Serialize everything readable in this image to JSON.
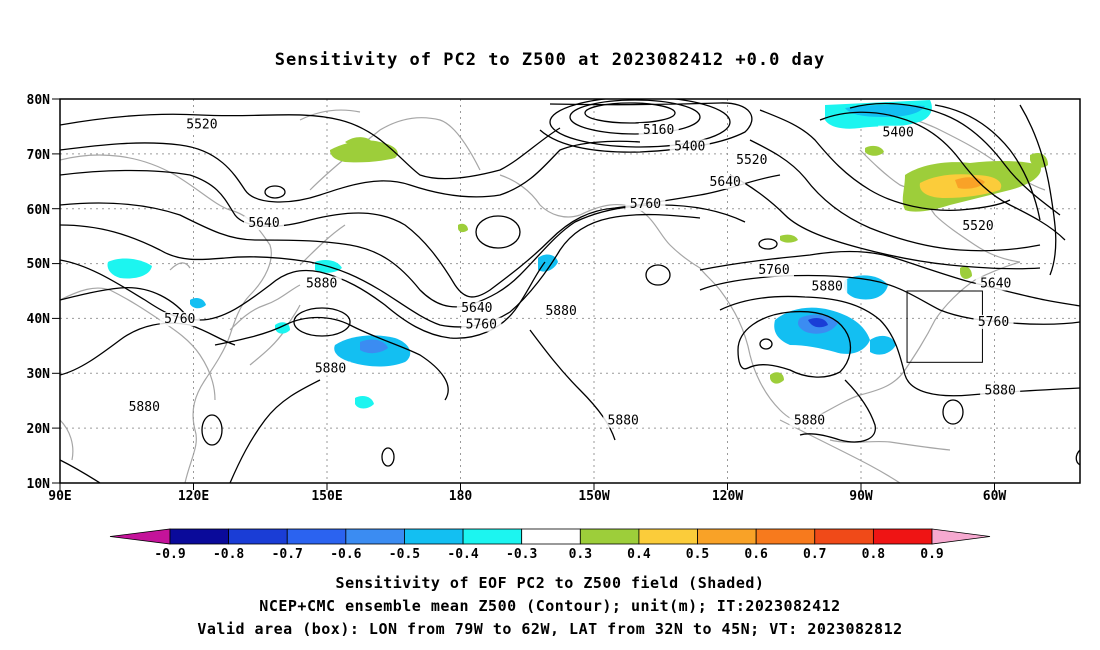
{
  "title": "Sensitivity of PC2 to Z500 at 2023082412 +0.0 day",
  "map": {
    "lat_labels": [
      "80N",
      "70N",
      "60N",
      "50N",
      "40N",
      "30N",
      "20N",
      "10N"
    ],
    "lon_labels": [
      "90E",
      "120E",
      "150E",
      "180",
      "150W",
      "120W",
      "90W",
      "60W"
    ],
    "contour_labels": [
      {
        "text": "5520",
        "lon": 122,
        "lat": 75
      },
      {
        "text": "5160",
        "lon": -135,
        "lat": 74
      },
      {
        "text": "5400",
        "lon": -128,
        "lat": 71
      },
      {
        "text": "5520",
        "lon": -114,
        "lat": 68.5
      },
      {
        "text": "5640",
        "lon": -120,
        "lat": 64.5
      },
      {
        "text": "5400",
        "lon": -81,
        "lat": 73.5
      },
      {
        "text": "5640",
        "lon": 136,
        "lat": 57
      },
      {
        "text": "5760",
        "lon": -138,
        "lat": 60.5
      },
      {
        "text": "5520",
        "lon": -63,
        "lat": 56.5
      },
      {
        "text": "5880",
        "lon": 149,
        "lat": 46
      },
      {
        "text": "5640",
        "lon": -176,
        "lat": 41.5
      },
      {
        "text": "5760",
        "lon": -175,
        "lat": 38.5
      },
      {
        "text": "5880",
        "lon": -157,
        "lat": 41
      },
      {
        "text": "5760",
        "lon": -109,
        "lat": 48.5
      },
      {
        "text": "5880",
        "lon": -97,
        "lat": 45.5
      },
      {
        "text": "5640",
        "lon": -59,
        "lat": 46
      },
      {
        "text": "5760",
        "lon": -59.5,
        "lat": 39
      },
      {
        "text": "5760",
        "lon": 117,
        "lat": 39.5
      },
      {
        "text": "5880",
        "lon": 151,
        "lat": 30.5
      },
      {
        "text": "5880",
        "lon": 109,
        "lat": 23.5
      },
      {
        "text": "5880",
        "lon": -143,
        "lat": 21
      },
      {
        "text": "5880",
        "lon": -101,
        "lat": 21
      },
      {
        "text": "5880",
        "lon": -58,
        "lat": 26.5
      }
    ],
    "valid_box": {
      "lon_min": -79,
      "lon_max": -62,
      "lat_min": 32,
      "lat_max": 45
    }
  },
  "colorbar": {
    "labels": [
      "-0.9",
      "-0.8",
      "-0.7",
      "-0.6",
      "-0.5",
      "-0.4",
      "-0.3",
      "0.3",
      "0.4",
      "0.5",
      "0.6",
      "0.7",
      "0.8",
      "0.9"
    ],
    "colors": [
      "#0a0a9a",
      "#1a3dd6",
      "#2b63f0",
      "#3b8cf2",
      "#13bff2",
      "#1cf5f0",
      "#ffffff",
      "#9dce3a",
      "#fbcc3a",
      "#f9a227",
      "#f77a1d",
      "#f04a18",
      "#ef1414"
    ],
    "low_end_color": "#c4139a",
    "high_end_color": "#f6a9d0"
  },
  "captions": {
    "line1": "Sensitivity of EOF PC2 to Z500 field (Shaded)",
    "line2": "NCEP+CMC ensemble mean Z500 (Contour); unit(m); IT:2023082412",
    "line3": "Valid area (box): LON from 79W to 62W, LAT from 32N to 45N; VT: 2023082812"
  }
}
